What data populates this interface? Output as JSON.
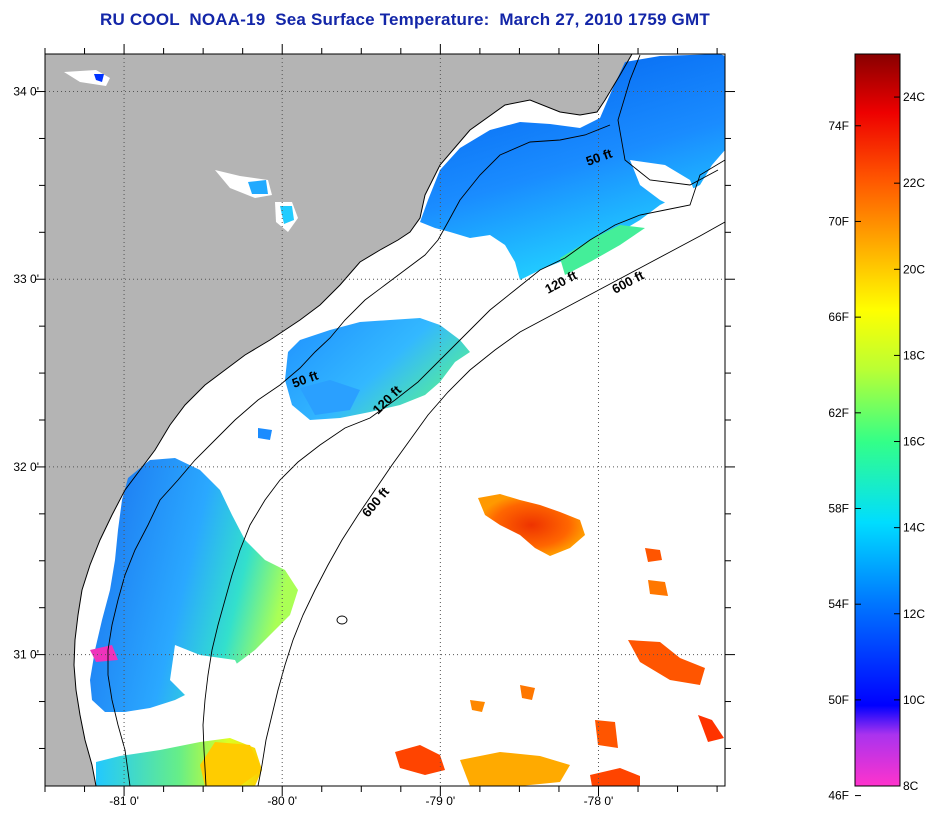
{
  "title": "RU COOL  NOAA-19  Sea Surface Temperature:  March 27, 2010 1759 GMT",
  "map": {
    "lat_range": [
      30.3,
      34.2
    ],
    "lon_range": [
      -81.5,
      -77.2
    ],
    "lat_ticks": [
      {
        "value": 34,
        "label": "34 0'"
      },
      {
        "value": 33,
        "label": "33 0'"
      },
      {
        "value": 32,
        "label": "32 0'"
      },
      {
        "value": 31,
        "label": "31 0'"
      }
    ],
    "lon_ticks": [
      {
        "value": -81,
        "label": "-81 0'"
      },
      {
        "value": -80,
        "label": "-80 0'"
      },
      {
        "value": -79,
        "label": "-79 0'"
      },
      {
        "value": -78,
        "label": "-78 0'"
      }
    ],
    "colors": {
      "land": "#b4b4b4",
      "cloud": "#ffffff",
      "grid": "#555555"
    },
    "contour_labels": [
      {
        "text": "50 ft",
        "depth": "50 ft"
      },
      {
        "text": "120 ft",
        "depth": "120 ft"
      },
      {
        "text": "600 ft",
        "depth": "600 ft"
      },
      {
        "text": "50 ft",
        "depth": "50 ft"
      },
      {
        "text": "120 ft",
        "depth": "120 ft"
      },
      {
        "text": "600 ft",
        "depth": "600 ft"
      }
    ]
  },
  "colorbar": {
    "celsius_labels": [
      "24C",
      "22C",
      "20C",
      "18C",
      "16C",
      "14C",
      "12C",
      "10C",
      "8C"
    ],
    "fahrenheit_labels": [
      "74F",
      "70F",
      "66F",
      "62F",
      "58F",
      "54F",
      "50F",
      "46F"
    ],
    "range_c": [
      8,
      25
    ],
    "colors": [
      "#ff33cc",
      "#9933ff",
      "#0000ff",
      "#0066ff",
      "#00ccff",
      "#00ff99",
      "#66ff33",
      "#ffff00",
      "#ffcc00",
      "#ff8800",
      "#ff3300",
      "#cc0000",
      "#880000"
    ]
  }
}
